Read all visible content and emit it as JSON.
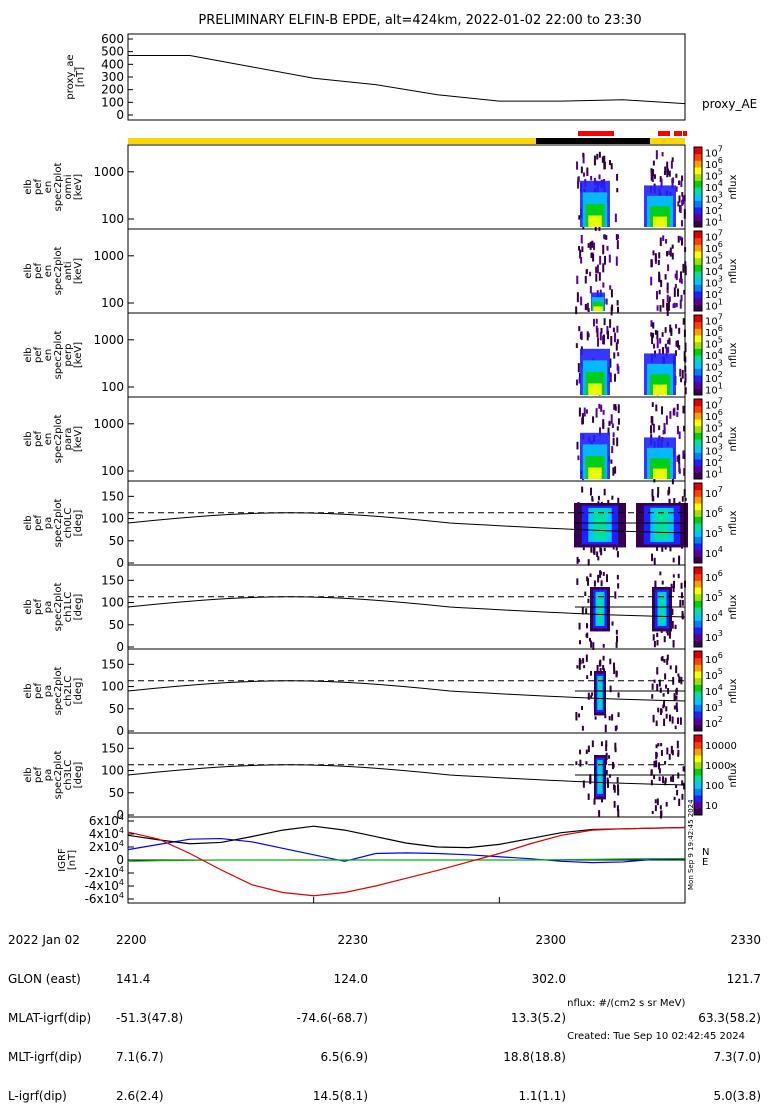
{
  "title": "PRELIMINARY ELFIN-B EPDE, alt=424km, 2022-01-02 22:00 to 23:30",
  "chart_data": [
    {
      "type": "line",
      "panel": "proxy_ae",
      "ylabel": [
        "proxy_ae",
        "[nT]"
      ],
      "legend": "proxy_AE",
      "ylim": [
        0,
        600
      ],
      "yticks": [
        "0",
        "100",
        "200",
        "300",
        "400",
        "500",
        "600"
      ],
      "x_minutes": [
        0,
        10,
        20,
        30,
        40,
        50,
        60,
        70,
        80,
        90
      ],
      "values": [
        470,
        470,
        380,
        290,
        240,
        160,
        110,
        110,
        120,
        90
      ]
    },
    {
      "type": "heatmap",
      "panel": "elb_pef_en_spec2plot_omni",
      "ylabel": [
        "elb",
        "pef",
        "en",
        "spec2plot",
        "omni",
        "[keV]"
      ],
      "yscale": "log",
      "ytick_labels": [
        "100",
        "1000"
      ],
      "colorbar_label": "nflux",
      "colorbar_ticks": [
        "10^1",
        "10^2",
        "10^3",
        "10^4",
        "10^5",
        "10^6",
        "10^7"
      ]
    },
    {
      "type": "heatmap",
      "panel": "elb_pef_en_spec2plot_anti",
      "ylabel": [
        "elb",
        "pef",
        "en",
        "spec2plot",
        "anti",
        "[keV]"
      ],
      "yscale": "log",
      "ytick_labels": [
        "100",
        "1000"
      ],
      "colorbar_label": "nflux",
      "colorbar_ticks": [
        "10^1",
        "10^2",
        "10^3",
        "10^4",
        "10^5",
        "10^6",
        "10^7"
      ]
    },
    {
      "type": "heatmap",
      "panel": "elb_pef_en_spec2plot_perp",
      "ylabel": [
        "elb",
        "pef",
        "en",
        "spec2plot",
        "perp",
        "[keV]"
      ],
      "yscale": "log",
      "ytick_labels": [
        "100",
        "1000"
      ],
      "colorbar_label": "nflux",
      "colorbar_ticks": [
        "10^1",
        "10^2",
        "10^3",
        "10^4",
        "10^5",
        "10^6",
        "10^7"
      ]
    },
    {
      "type": "heatmap",
      "panel": "elb_pef_en_spec2plot_para",
      "ylabel": [
        "elb",
        "pef",
        "en",
        "spec2plot",
        "para",
        "[keV]"
      ],
      "yscale": "log",
      "ytick_labels": [
        "100",
        "1000"
      ],
      "colorbar_label": "nflux",
      "colorbar_ticks": [
        "10^1",
        "10^2",
        "10^3",
        "10^4",
        "10^5",
        "10^6",
        "10^7"
      ]
    },
    {
      "type": "heatmap",
      "panel": "elb_pef_pa_spec2plot_ch0LC",
      "ylabel": [
        "elb",
        "pef",
        "pa",
        "spec2plot",
        "ch0LC",
        "[deg]"
      ],
      "ylim": [
        0,
        180
      ],
      "ytick_labels": [
        "0",
        "50",
        "100",
        "150"
      ],
      "colorbar_label": "nflux",
      "colorbar_ticks": [
        "10^4",
        "10^5",
        "10^6",
        "10^7"
      ]
    },
    {
      "type": "heatmap",
      "panel": "elb_pef_pa_spec2plot_ch1LC",
      "ylabel": [
        "elb",
        "pef",
        "pa",
        "spec2plot",
        "ch1LC",
        "[deg]"
      ],
      "ylim": [
        0,
        180
      ],
      "ytick_labels": [
        "0",
        "50",
        "100",
        "150"
      ],
      "colorbar_label": "nflux",
      "colorbar_ticks": [
        "10^3",
        "10^4",
        "10^5",
        "10^6"
      ]
    },
    {
      "type": "heatmap",
      "panel": "elb_pef_pa_spec2plot_ch2LC",
      "ylabel": [
        "elb",
        "pef",
        "pa",
        "spec2plot",
        "ch2LC",
        "[deg]"
      ],
      "ylim": [
        0,
        180
      ],
      "ytick_labels": [
        "0",
        "50",
        "100",
        "150"
      ],
      "colorbar_label": "nflux",
      "colorbar_ticks": [
        "10^2",
        "10^3",
        "10^4",
        "10^5",
        "10^6"
      ]
    },
    {
      "type": "heatmap",
      "panel": "elb_pef_pa_spec2plot_ch3LC",
      "ylabel": [
        "elb",
        "pef",
        "pa",
        "spec2plot",
        "ch3LC",
        "[deg]"
      ],
      "ylim": [
        0,
        180
      ],
      "ytick_labels": [
        "0",
        "50",
        "100",
        "150"
      ],
      "colorbar_label": "nflux",
      "colorbar_ticks": [
        "10",
        "100",
        "1000",
        "10000"
      ]
    },
    {
      "type": "line",
      "panel": "igrf",
      "ylabel": [
        "IGRF",
        "[nT]"
      ],
      "ylim": [
        -60000,
        60000
      ],
      "ytick_labels": [
        "-6x10^4",
        "-4x10^4",
        "-2x10^4",
        "0",
        "2x10^4",
        "4x10^4",
        "6x10^4"
      ],
      "legend": [
        "N",
        "E"
      ],
      "x_minutes": [
        0,
        5,
        10,
        15,
        20,
        25,
        30,
        35,
        40,
        45,
        50,
        55,
        60,
        65,
        70,
        75,
        80,
        85,
        90
      ],
      "series": [
        {
          "name": "N",
          "color": "#0000ff",
          "values": [
            16000,
            24000,
            32000,
            33000,
            28000,
            18000,
            8000,
            -2000,
            10000,
            11000,
            10000,
            8000,
            5000,
            2000,
            -2000,
            -4000,
            -3000,
            1000,
            2000
          ]
        },
        {
          "name": "E",
          "color": "#00b000",
          "values": [
            -2000,
            -1000,
            -500,
            0,
            0,
            0,
            0,
            0,
            0,
            0,
            0,
            0,
            0,
            0,
            500,
            1000,
            1500,
            2000,
            2000
          ]
        },
        {
          "color": "#000000",
          "values": [
            38000,
            31000,
            25000,
            27000,
            36000,
            46000,
            52000,
            46000,
            36000,
            26000,
            20000,
            19000,
            24000,
            33000,
            42000,
            47000,
            48000,
            49000,
            50000
          ]
        },
        {
          "color": "#e00000",
          "values": [
            43000,
            32000,
            10000,
            -15000,
            -38000,
            -50000,
            -55000,
            -50000,
            -40000,
            -28000,
            -16000,
            -3000,
            10000,
            25000,
            38000,
            46000,
            48000,
            49000,
            50000
          ]
        }
      ]
    }
  ],
  "orbit_bar": {
    "colors": [
      "#ffd700",
      "#000000",
      "#ffd700"
    ],
    "science_zones_color": "#ff0000"
  },
  "footer_left": {
    "rows": [
      [
        "2022 Jan 02",
        "2200",
        "2230",
        "2300",
        "2330"
      ],
      [
        "GLON (east)",
        "141.4",
        "124.0",
        "302.0",
        "121.7"
      ],
      [
        "MLAT-igrf(dip)",
        "-51.3(47.8)",
        "-74.6(-68.7)",
        "13.3(5.2)",
        "63.3(58.2)"
      ],
      [
        "MLT-igrf(dip)",
        "7.1(6.7)",
        "6.5(6.9)",
        "18.8(18.8)",
        "7.3(7.0)"
      ],
      [
        "L-igrf(dip)",
        "2.6(2.4)",
        "14.5(8.1)",
        "1.1(1.1)",
        "5.0(3.8)"
      ]
    ]
  },
  "footer_right": {
    "units": "nflux: #/(cm2 s sr MeV)",
    "created": "Created: Tue Sep 10 02:42:45 2024"
  },
  "side_text": "Mon Sep 9 19:42:45 2024"
}
